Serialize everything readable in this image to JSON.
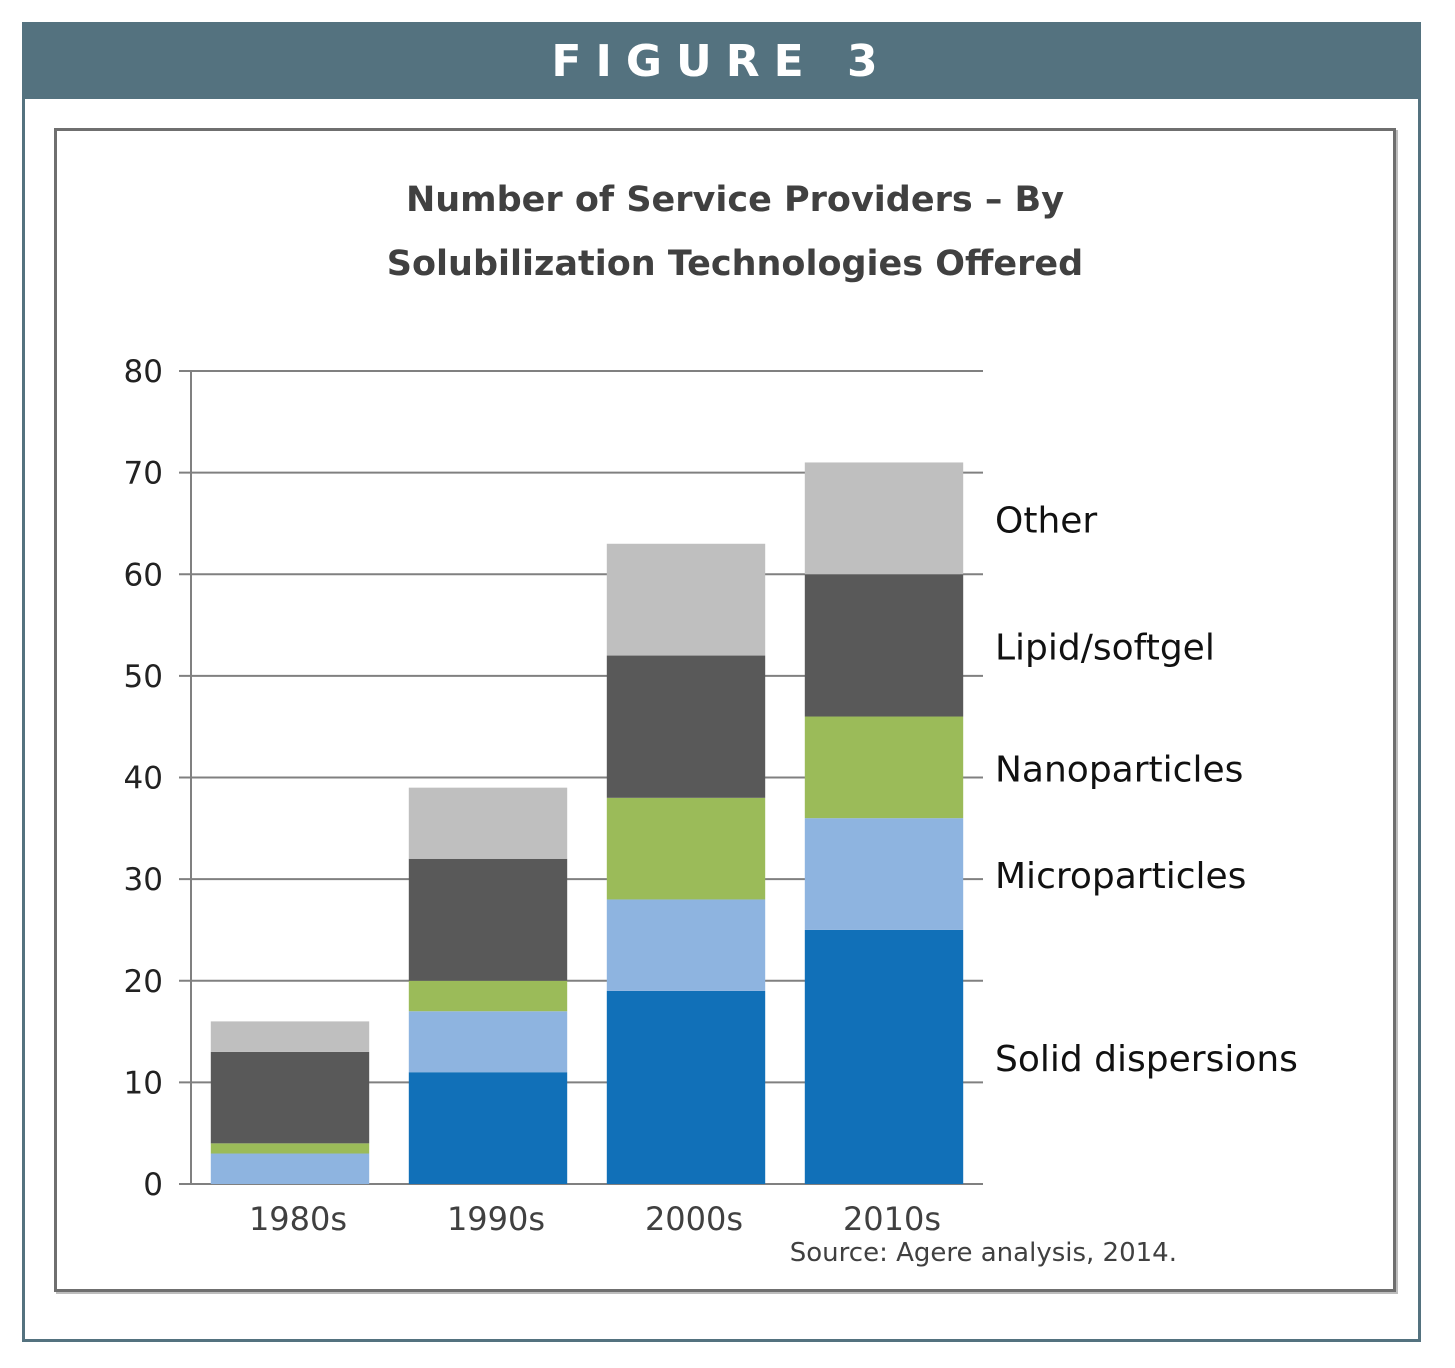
{
  "figure": {
    "label": "FIGURE 3"
  },
  "chart_data": {
    "type": "bar",
    "stacked": true,
    "title_lines": [
      "Number of Service Providers – By",
      "Solubilization Technologies Offered"
    ],
    "categories": [
      "1980s",
      "1990s",
      "2000s",
      "2010s"
    ],
    "yticks": [
      "0",
      "10",
      "20",
      "30",
      "40",
      "50",
      "60",
      "70",
      "80"
    ],
    "ylim": [
      0,
      80
    ],
    "grid": true,
    "series": [
      {
        "name": "Solid dispersions",
        "color": "#1170b8",
        "values": [
          0,
          11,
          19,
          25
        ]
      },
      {
        "name": "Microparticles",
        "color": "#8eb4e0",
        "values": [
          3,
          6,
          9,
          11
        ]
      },
      {
        "name": "Nanoparticles",
        "color": "#9bbb59",
        "values": [
          1,
          3,
          10,
          10
        ]
      },
      {
        "name": "Lipid/softgel",
        "color": "#595959",
        "values": [
          9,
          12,
          14,
          14
        ]
      },
      {
        "name": "Other",
        "color": "#bfbfbf",
        "values": [
          3,
          7,
          11,
          11
        ]
      }
    ],
    "legend_placement": "right of last bar, aligned to segments",
    "source": "Source: Agere analysis, 2014."
  }
}
